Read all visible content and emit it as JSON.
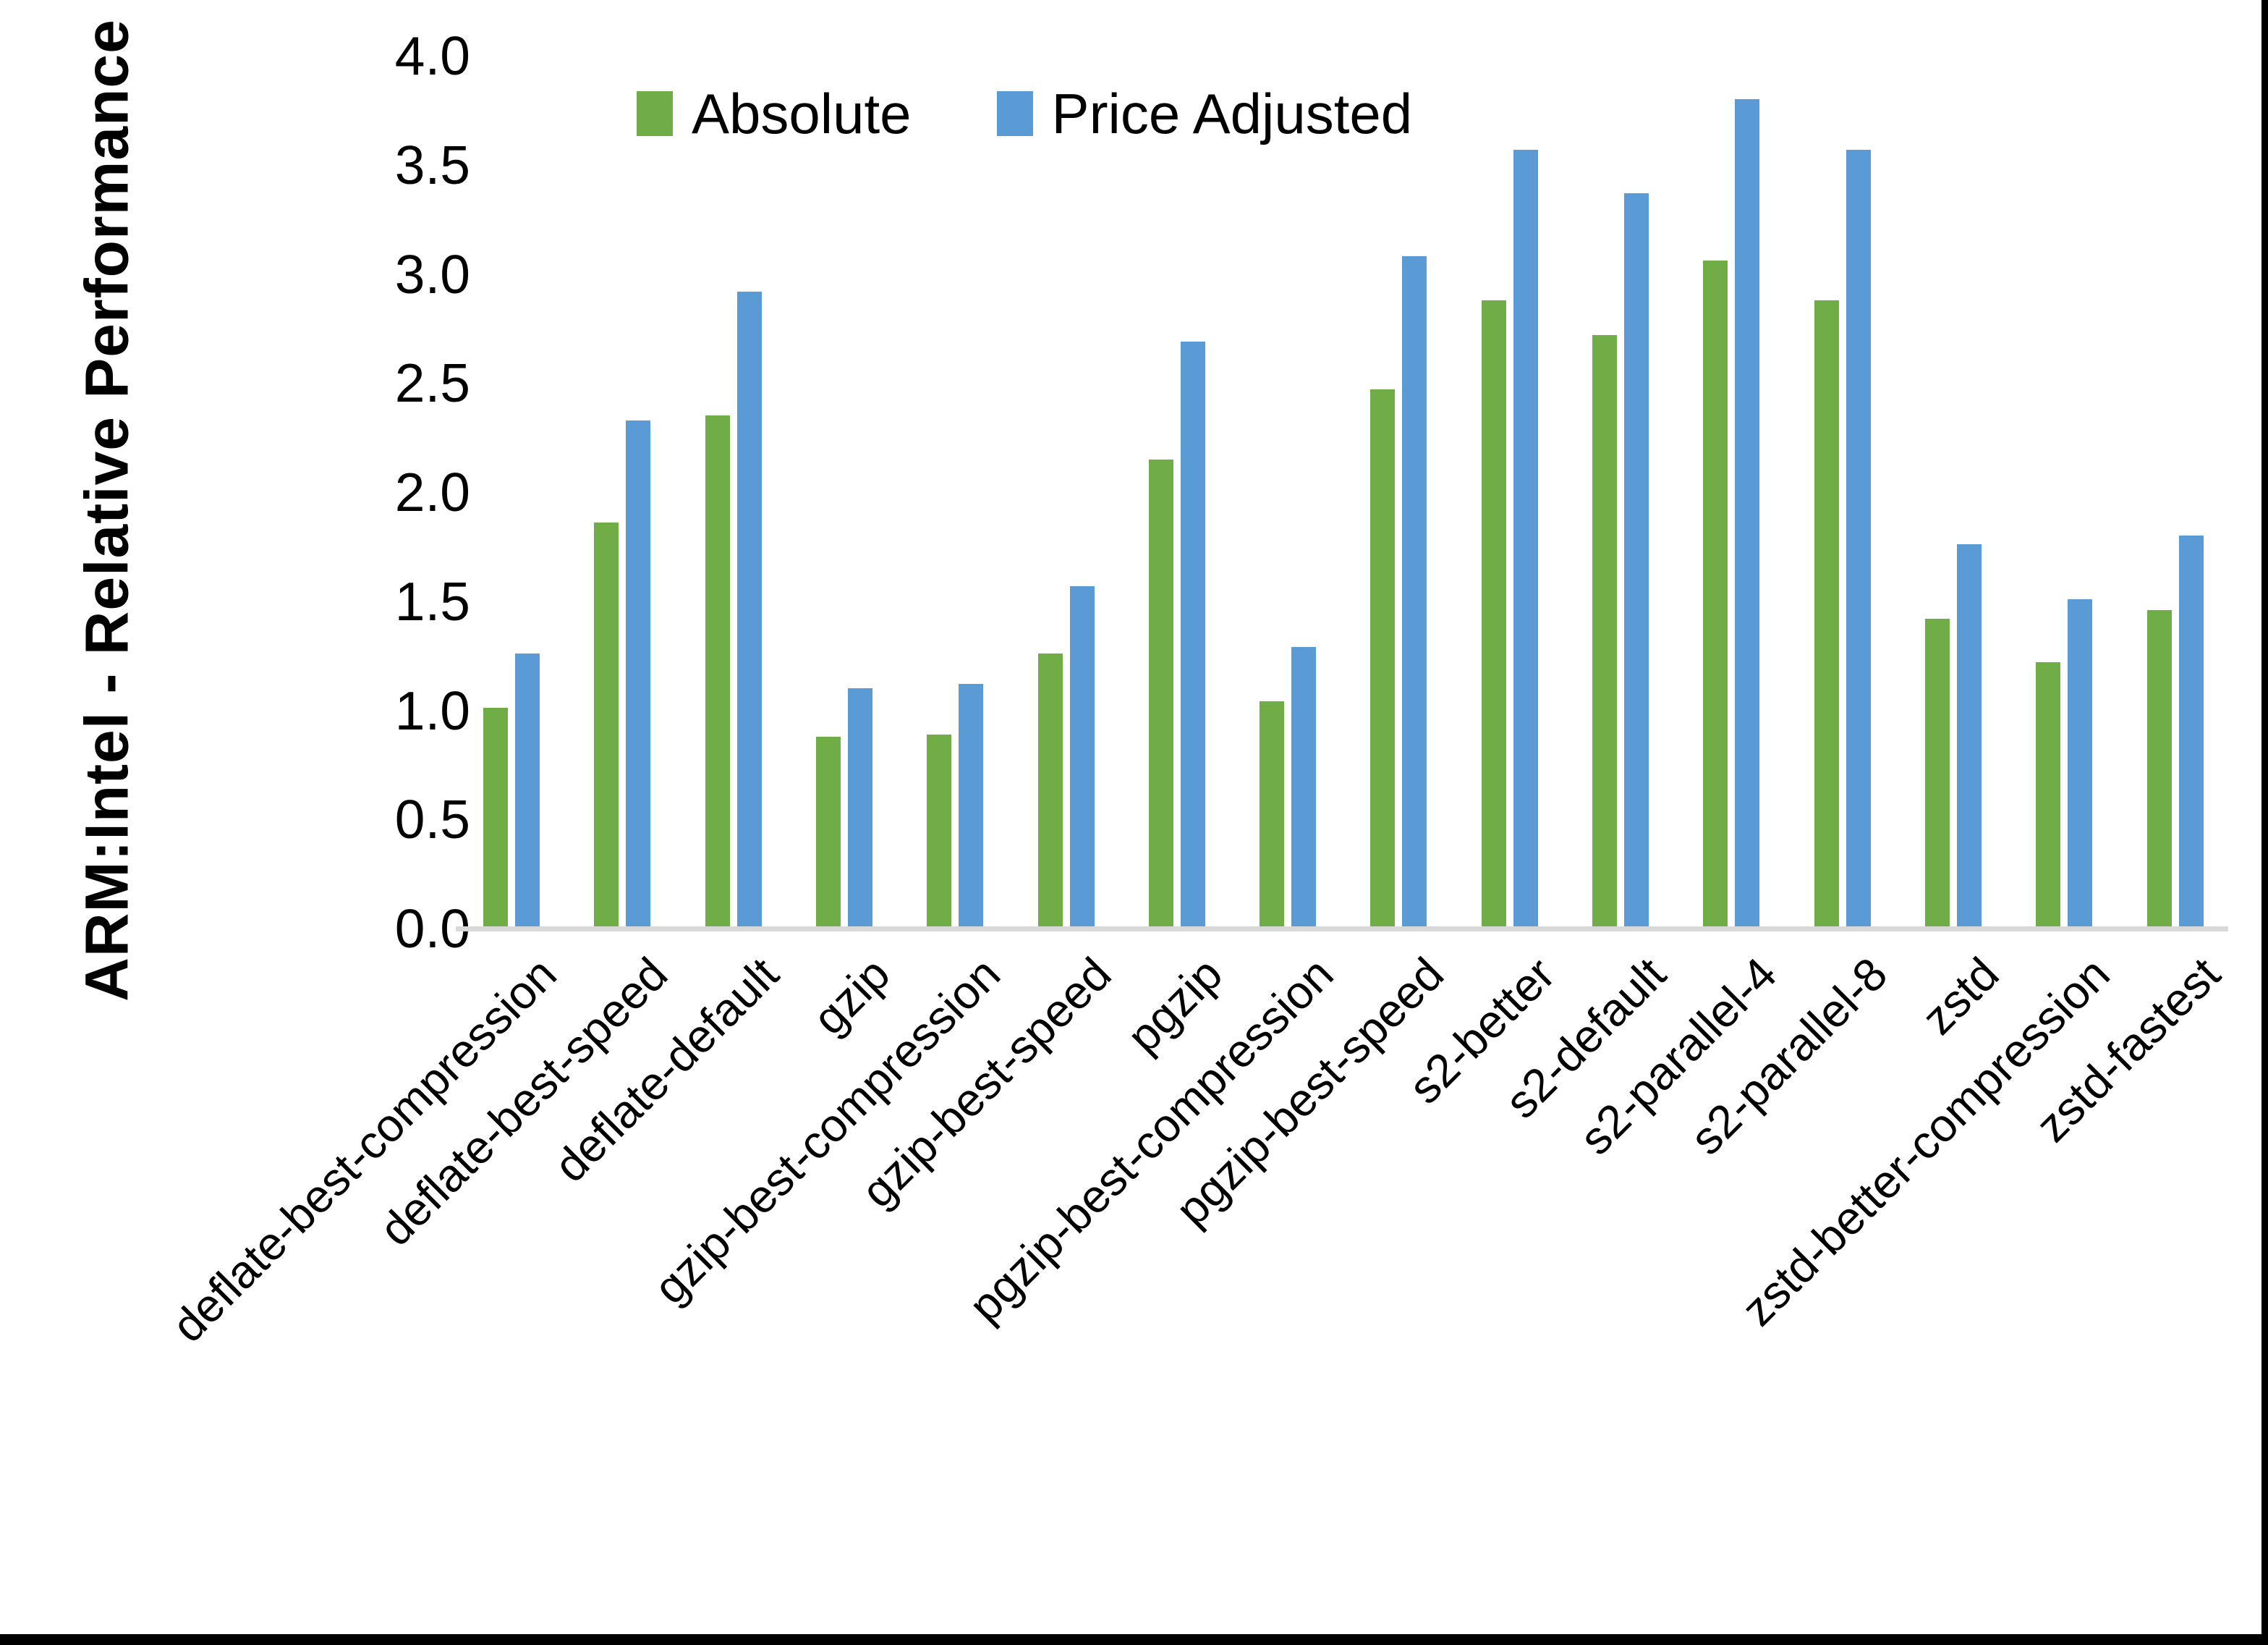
{
  "chart_data": {
    "type": "bar",
    "title": "",
    "xlabel": "",
    "ylabel": "ARM:Intel - Relative Performance",
    "ylim": [
      0.0,
      4.0
    ],
    "ytick_step": 0.5,
    "ytick_labels": [
      "0.0",
      "0.5",
      "1.0",
      "1.5",
      "2.0",
      "2.5",
      "3.0",
      "3.5",
      "4.0"
    ],
    "grid": "off",
    "legend_position": "top-center",
    "axis_line_color": "#D9D9D9",
    "categories": [
      "deflate-best-compression",
      "deflate-best-speed",
      "deflate-default",
      "gzip",
      "gzip-best-compression",
      "gzip-best-speed",
      "pgzip",
      "pgzip-best-compression",
      "pgzip-best-speed",
      "s2-better",
      "s2-default",
      "s2-parallel-4",
      "s2-parallel-8",
      "zstd",
      "zstd-better-compression",
      "zstd-fastest"
    ],
    "series": [
      {
        "name": "Absolute",
        "color": "#70AD47",
        "values": [
          1.01,
          1.86,
          2.35,
          0.88,
          0.89,
          1.26,
          2.15,
          1.04,
          2.47,
          2.88,
          2.72,
          3.06,
          2.88,
          1.42,
          1.22,
          1.46
        ]
      },
      {
        "name": "Price Adjusted",
        "color": "#5B9BD5",
        "values": [
          1.26,
          2.33,
          2.92,
          1.1,
          1.12,
          1.57,
          2.69,
          1.29,
          3.08,
          3.57,
          3.37,
          3.8,
          3.57,
          1.76,
          1.51,
          1.8
        ]
      }
    ]
  },
  "frame": {
    "border_color": "#000000",
    "background": "#FFFFFF"
  }
}
